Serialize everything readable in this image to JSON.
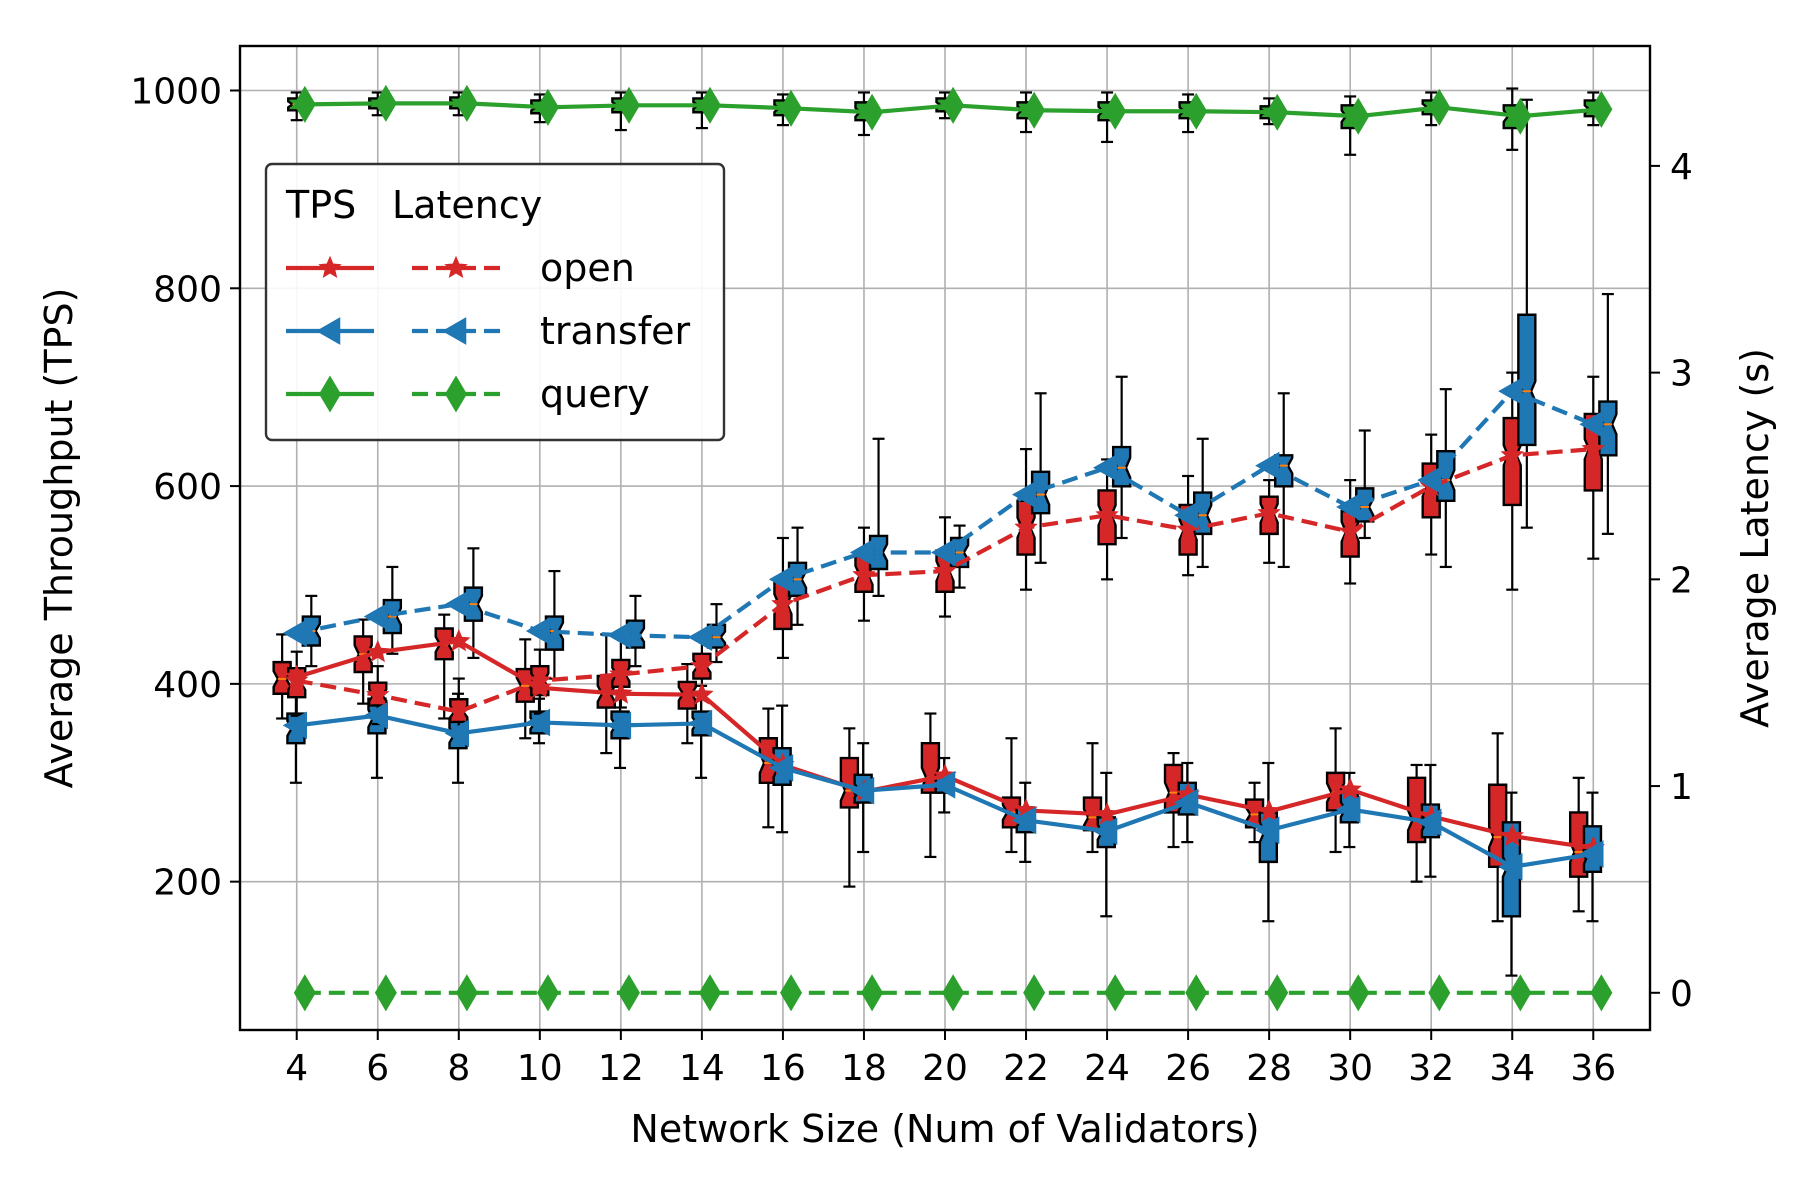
{
  "chart_data": {
    "type": "line",
    "title": "",
    "xlabel": "Network Size (Num of Validators)",
    "ylabel_left": "Average Throughput (TPS)",
    "ylabel_right": "Average Latency (s)",
    "x": [
      4,
      6,
      8,
      10,
      12,
      14,
      16,
      18,
      20,
      22,
      24,
      26,
      28,
      30,
      32,
      34,
      36
    ],
    "x_tick_labels": [
      "4",
      "6",
      "8",
      "10",
      "12",
      "14",
      "16",
      "18",
      "20",
      "22",
      "24",
      "26",
      "28",
      "30",
      "32",
      "34",
      "36"
    ],
    "ylim_left": [
      50,
      1045
    ],
    "ylim_right": [
      -0.18,
      4.58
    ],
    "y_ticks_left": [
      200,
      400,
      600,
      800,
      1000
    ],
    "y_ticks_right": [
      0,
      1,
      2,
      3,
      4
    ],
    "grid": true,
    "legend": {
      "placement": "upper-left",
      "header_tps": "TPS",
      "header_latency": "Latency",
      "entries": [
        "open",
        "transfer",
        "query"
      ]
    },
    "colors": {
      "open": "#d62728",
      "transfer": "#1f77b4",
      "query": "#2ca02c"
    },
    "series": [
      {
        "name": "open",
        "metric": "TPS",
        "axis": "left",
        "style": "solid",
        "marker": "star",
        "values": [
          407,
          432,
          443,
          396,
          390,
          389,
          318,
          291,
          307,
          272,
          268,
          288,
          271,
          293,
          266,
          246,
          234
        ],
        "box": [
          {
            "whislo": 365,
            "q1": 390,
            "med": 405,
            "q3": 422,
            "whishi": 450
          },
          {
            "whislo": 380,
            "q1": 412,
            "med": 430,
            "q3": 448,
            "whishi": 465
          },
          {
            "whislo": 365,
            "q1": 425,
            "med": 440,
            "q3": 456,
            "whishi": 470
          },
          {
            "whislo": 345,
            "q1": 382,
            "med": 398,
            "q3": 415,
            "whishi": 445
          },
          {
            "whislo": 330,
            "q1": 376,
            "med": 390,
            "q3": 408,
            "whishi": 450
          },
          {
            "whislo": 340,
            "q1": 375,
            "med": 390,
            "q3": 402,
            "whishi": 420
          },
          {
            "whislo": 255,
            "q1": 300,
            "med": 320,
            "q3": 345,
            "whishi": 375
          },
          {
            "whislo": 195,
            "q1": 275,
            "med": 292,
            "q3": 325,
            "whishi": 355
          },
          {
            "whislo": 225,
            "q1": 290,
            "med": 305,
            "q3": 340,
            "whishi": 370
          },
          {
            "whislo": 230,
            "q1": 255,
            "med": 270,
            "q3": 285,
            "whishi": 345
          },
          {
            "whislo": 230,
            "q1": 252,
            "med": 265,
            "q3": 285,
            "whishi": 340
          },
          {
            "whislo": 235,
            "q1": 270,
            "med": 290,
            "q3": 318,
            "whishi": 330
          },
          {
            "whislo": 240,
            "q1": 255,
            "med": 268,
            "q3": 283,
            "whishi": 300
          },
          {
            "whislo": 230,
            "q1": 272,
            "med": 290,
            "q3": 310,
            "whishi": 355
          },
          {
            "whislo": 200,
            "q1": 240,
            "med": 262,
            "q3": 305,
            "whishi": 318
          },
          {
            "whislo": 160,
            "q1": 215,
            "med": 245,
            "q3": 298,
            "whishi": 350
          },
          {
            "whislo": 170,
            "q1": 205,
            "med": 230,
            "q3": 270,
            "whishi": 305
          }
        ]
      },
      {
        "name": "transfer",
        "metric": "TPS",
        "axis": "left",
        "style": "solid",
        "marker": "triangle-left",
        "values": [
          358,
          368,
          350,
          361,
          358,
          360,
          315,
          292,
          298,
          262,
          251,
          280,
          252,
          273,
          260,
          215,
          228
        ],
        "box": [
          {
            "whislo": 300,
            "q1": 340,
            "med": 355,
            "q3": 370,
            "whishi": 390
          },
          {
            "whislo": 305,
            "q1": 350,
            "med": 365,
            "q3": 385,
            "whishi": 400
          },
          {
            "whislo": 300,
            "q1": 335,
            "med": 348,
            "q3": 365,
            "whishi": 390
          },
          {
            "whislo": 340,
            "q1": 350,
            "med": 360,
            "q3": 372,
            "whishi": 385
          },
          {
            "whislo": 315,
            "q1": 345,
            "med": 358,
            "q3": 372,
            "whishi": 390
          },
          {
            "whislo": 305,
            "q1": 348,
            "med": 360,
            "q3": 372,
            "whishi": 398
          },
          {
            "whislo": 250,
            "q1": 298,
            "med": 315,
            "q3": 335,
            "whishi": 378
          },
          {
            "whislo": 230,
            "q1": 280,
            "med": 292,
            "q3": 308,
            "whishi": 340
          },
          {
            "whislo": 270,
            "q1": 290,
            "med": 298,
            "q3": 306,
            "whishi": 325
          },
          {
            "whislo": 220,
            "q1": 250,
            "med": 262,
            "q3": 275,
            "whishi": 300
          },
          {
            "whislo": 165,
            "q1": 235,
            "med": 250,
            "q3": 265,
            "whishi": 310
          },
          {
            "whislo": 240,
            "q1": 268,
            "med": 280,
            "q3": 300,
            "whishi": 320
          },
          {
            "whislo": 160,
            "q1": 220,
            "med": 250,
            "q3": 270,
            "whishi": 320
          },
          {
            "whislo": 235,
            "q1": 260,
            "med": 273,
            "q3": 290,
            "whishi": 310
          },
          {
            "whislo": 205,
            "q1": 245,
            "med": 260,
            "q3": 278,
            "whishi": 318
          },
          {
            "whislo": 105,
            "q1": 165,
            "med": 215,
            "q3": 260,
            "whishi": 290
          },
          {
            "whislo": 160,
            "q1": 210,
            "med": 228,
            "q3": 256,
            "whishi": 290
          }
        ]
      },
      {
        "name": "query",
        "metric": "TPS",
        "axis": "left",
        "style": "solid",
        "marker": "diamond",
        "values": [
          986,
          987,
          987,
          983,
          985,
          985,
          982,
          978,
          985,
          980,
          979,
          979,
          978,
          974,
          983,
          974,
          981
        ],
        "box": [
          {
            "whislo": 970,
            "q1": 980,
            "med": 986,
            "q3": 992,
            "whishi": 998
          },
          {
            "whislo": 975,
            "q1": 982,
            "med": 987,
            "q3": 992,
            "whishi": 998
          },
          {
            "whislo": 975,
            "q1": 982,
            "med": 987,
            "q3": 993,
            "whishi": 998
          },
          {
            "whislo": 968,
            "q1": 977,
            "med": 983,
            "q3": 990,
            "whishi": 996
          },
          {
            "whislo": 960,
            "q1": 978,
            "med": 985,
            "q3": 992,
            "whishi": 998
          },
          {
            "whislo": 962,
            "q1": 978,
            "med": 985,
            "q3": 992,
            "whishi": 998
          },
          {
            "whislo": 965,
            "q1": 975,
            "med": 982,
            "q3": 990,
            "whishi": 996
          },
          {
            "whislo": 955,
            "q1": 970,
            "med": 978,
            "q3": 988,
            "whishi": 998
          },
          {
            "whislo": 972,
            "q1": 979,
            "med": 985,
            "q3": 992,
            "whishi": 998
          },
          {
            "whislo": 958,
            "q1": 972,
            "med": 980,
            "q3": 988,
            "whishi": 998
          },
          {
            "whislo": 948,
            "q1": 970,
            "med": 979,
            "q3": 988,
            "whishi": 998
          },
          {
            "whislo": 958,
            "q1": 972,
            "med": 979,
            "q3": 988,
            "whishi": 996
          },
          {
            "whislo": 966,
            "q1": 972,
            "med": 978,
            "q3": 984,
            "whishi": 992
          },
          {
            "whislo": 935,
            "q1": 962,
            "med": 974,
            "q3": 985,
            "whishi": 994
          },
          {
            "whislo": 965,
            "q1": 976,
            "med": 983,
            "q3": 990,
            "whishi": 998
          },
          {
            "whislo": 940,
            "q1": 962,
            "med": 974,
            "q3": 985,
            "whishi": 1002
          },
          {
            "whislo": 965,
            "q1": 974,
            "med": 981,
            "q3": 990,
            "whishi": 998
          }
        ]
      },
      {
        "name": "open",
        "metric": "Latency",
        "axis": "right",
        "style": "dashed",
        "marker": "star",
        "values": [
          1.51,
          1.44,
          1.36,
          1.51,
          1.54,
          1.58,
          1.88,
          2.02,
          2.04,
          2.25,
          2.31,
          2.24,
          2.32,
          2.23,
          2.45,
          2.6,
          2.63
        ],
        "box": [
          {
            "whislo": 1.34,
            "q1": 1.43,
            "med": 1.5,
            "q3": 1.57,
            "whishi": 1.65
          },
          {
            "whislo": 1.3,
            "q1": 1.39,
            "med": 1.44,
            "q3": 1.5,
            "whishi": 1.58
          },
          {
            "whislo": 1.25,
            "q1": 1.31,
            "med": 1.36,
            "q3": 1.42,
            "whishi": 1.52
          },
          {
            "whislo": 1.35,
            "q1": 1.44,
            "med": 1.51,
            "q3": 1.58,
            "whishi": 1.66
          },
          {
            "whislo": 1.38,
            "q1": 1.48,
            "med": 1.54,
            "q3": 1.61,
            "whishi": 1.72
          },
          {
            "whislo": 1.45,
            "q1": 1.52,
            "med": 1.58,
            "q3": 1.64,
            "whishi": 1.72
          },
          {
            "whislo": 1.62,
            "q1": 1.76,
            "med": 1.88,
            "q3": 2.0,
            "whishi": 2.2
          },
          {
            "whislo": 1.8,
            "q1": 1.94,
            "med": 2.02,
            "q3": 2.12,
            "whishi": 2.25
          },
          {
            "whislo": 1.82,
            "q1": 1.94,
            "med": 2.04,
            "q3": 2.14,
            "whishi": 2.3
          },
          {
            "whislo": 1.95,
            "q1": 2.12,
            "med": 2.25,
            "q3": 2.38,
            "whishi": 2.63
          },
          {
            "whislo": 2.0,
            "q1": 2.17,
            "med": 2.31,
            "q3": 2.43,
            "whishi": 2.58
          },
          {
            "whislo": 2.02,
            "q1": 2.12,
            "med": 2.24,
            "q3": 2.36,
            "whishi": 2.5
          },
          {
            "whislo": 2.08,
            "q1": 2.22,
            "med": 2.32,
            "q3": 2.4,
            "whishi": 2.48
          },
          {
            "whislo": 1.98,
            "q1": 2.11,
            "med": 2.23,
            "q3": 2.33,
            "whishi": 2.48
          },
          {
            "whislo": 2.12,
            "q1": 2.3,
            "med": 2.45,
            "q3": 2.56,
            "whishi": 2.7
          },
          {
            "whislo": 1.95,
            "q1": 2.36,
            "med": 2.6,
            "q3": 2.78,
            "whishi": 3.0
          },
          {
            "whislo": 2.1,
            "q1": 2.43,
            "med": 2.63,
            "q3": 2.8,
            "whishi": 2.98
          }
        ]
      },
      {
        "name": "transfer",
        "metric": "Latency",
        "axis": "right",
        "style": "dashed",
        "marker": "triangle-left",
        "values": [
          1.74,
          1.82,
          1.88,
          1.75,
          1.73,
          1.72,
          2.0,
          2.13,
          2.13,
          2.41,
          2.54,
          2.31,
          2.55,
          2.35,
          2.48,
          2.91,
          2.75
        ],
        "box": [
          {
            "whislo": 1.58,
            "q1": 1.68,
            "med": 1.75,
            "q3": 1.82,
            "whishi": 1.92
          },
          {
            "whislo": 1.64,
            "q1": 1.74,
            "med": 1.82,
            "q3": 1.9,
            "whishi": 2.06
          },
          {
            "whislo": 1.62,
            "q1": 1.8,
            "med": 1.88,
            "q3": 1.96,
            "whishi": 2.15
          },
          {
            "whislo": 1.52,
            "q1": 1.66,
            "med": 1.75,
            "q3": 1.82,
            "whishi": 2.04
          },
          {
            "whislo": 1.58,
            "q1": 1.67,
            "med": 1.73,
            "q3": 1.8,
            "whishi": 1.92
          },
          {
            "whislo": 1.6,
            "q1": 1.67,
            "med": 1.72,
            "q3": 1.78,
            "whishi": 1.88
          },
          {
            "whislo": 1.78,
            "q1": 1.92,
            "med": 2.0,
            "q3": 2.08,
            "whishi": 2.25
          },
          {
            "whislo": 1.92,
            "q1": 2.05,
            "med": 2.13,
            "q3": 2.21,
            "whishi": 2.68
          },
          {
            "whislo": 1.96,
            "q1": 2.06,
            "med": 2.13,
            "q3": 2.2,
            "whishi": 2.26
          },
          {
            "whislo": 2.08,
            "q1": 2.32,
            "med": 2.41,
            "q3": 2.52,
            "whishi": 2.9
          },
          {
            "whislo": 2.2,
            "q1": 2.45,
            "med": 2.54,
            "q3": 2.64,
            "whishi": 2.98
          },
          {
            "whislo": 2.06,
            "q1": 2.22,
            "med": 2.31,
            "q3": 2.42,
            "whishi": 2.68
          },
          {
            "whislo": 2.06,
            "q1": 2.45,
            "med": 2.55,
            "q3": 2.6,
            "whishi": 2.9
          },
          {
            "whislo": 2.2,
            "q1": 2.28,
            "med": 2.35,
            "q3": 2.44,
            "whishi": 2.72
          },
          {
            "whislo": 2.06,
            "q1": 2.38,
            "med": 2.48,
            "q3": 2.62,
            "whishi": 2.92
          },
          {
            "whislo": 2.25,
            "q1": 2.65,
            "med": 2.91,
            "q3": 3.28,
            "whishi": 4.32
          },
          {
            "whislo": 2.22,
            "q1": 2.6,
            "med": 2.75,
            "q3": 2.86,
            "whishi": 3.38
          }
        ]
      },
      {
        "name": "query",
        "metric": "Latency",
        "axis": "right",
        "style": "dashed",
        "marker": "diamond",
        "values": [
          0,
          0,
          0,
          0,
          0,
          0,
          0,
          0,
          0,
          0,
          0,
          0,
          0,
          0,
          0,
          0,
          0
        ]
      }
    ]
  }
}
